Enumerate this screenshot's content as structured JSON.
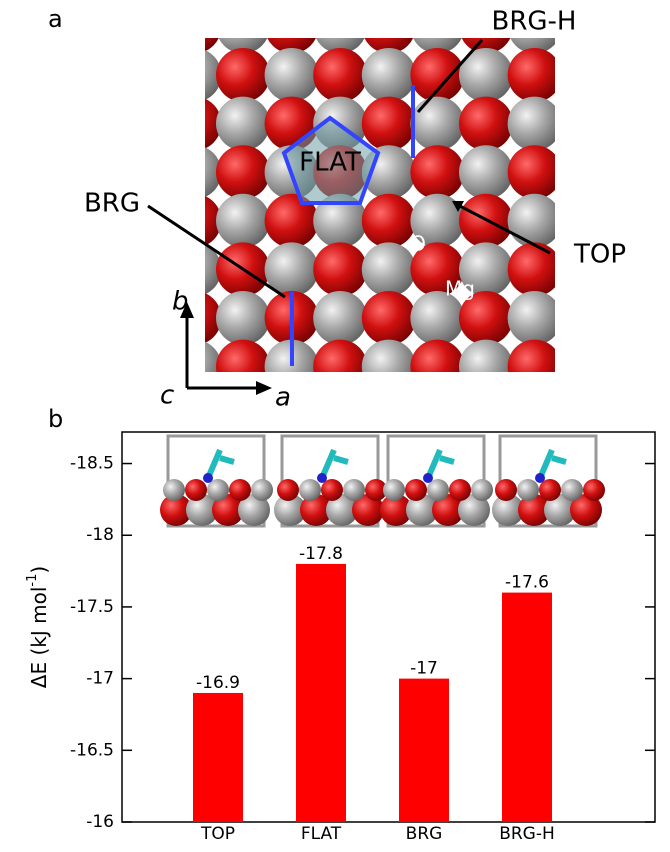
{
  "panel_a": {
    "panel_label": "a",
    "sites": {
      "brg_h": "BRG-H",
      "flat": "FLAT",
      "brg": "BRG",
      "top": "TOP"
    },
    "atoms": {
      "o": "O",
      "mg": "Mg"
    },
    "axes": {
      "b": "b",
      "c": "c",
      "a": "a"
    }
  },
  "chart_data": {
    "type": "bar",
    "panel_label": "b",
    "y_label": [
      "ΔE (kJ mol",
      "-1",
      ")"
    ],
    "categories": [
      "TOP",
      "FLAT",
      "BRG",
      "BRG-H"
    ],
    "values": [
      -16.9,
      -17.8,
      -17,
      -17.6
    ],
    "color": "#ff0000",
    "ylim": [
      -16,
      -18.72
    ],
    "yticks": [
      -18.5,
      -18,
      -17.5,
      -17,
      -16.5,
      -16
    ]
  }
}
